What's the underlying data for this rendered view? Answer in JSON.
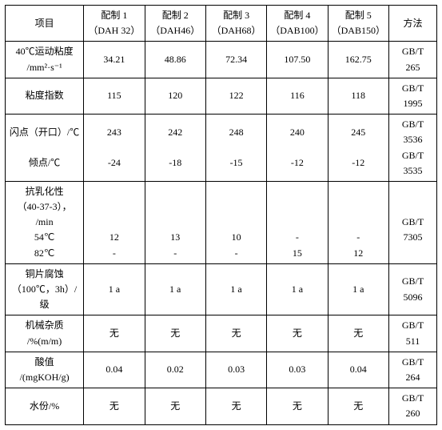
{
  "header": {
    "item": "项目",
    "c1a": "配制 1",
    "c1b": "（DAH 32）",
    "c2a": "配制 2",
    "c2b": "（DAH46）",
    "c3a": "配制 3",
    "c3b": "（DAH68）",
    "c4a": "配制 4",
    "c4b": "（DAB100）",
    "c5a": "配制 5",
    "c5b": "（DAB150）",
    "method": "方法"
  },
  "rows": {
    "visc": {
      "label1": "40℃运动粘度",
      "label2": "/mm²·s⁻¹",
      "v1": "34.21",
      "v2": "48.86",
      "v3": "72.34",
      "v4": "107.50",
      "v5": "162.75",
      "m1": "GB/T",
      "m2": "265"
    },
    "vidx": {
      "label": "粘度指数",
      "v1": "115",
      "v2": "120",
      "v3": "122",
      "v4": "116",
      "v5": "118",
      "m1": "GB/T",
      "m2": "1995"
    },
    "flash": {
      "label1": "闪点（开口）/℃",
      "label2": "倾点/℃",
      "a1": "243",
      "a2": "242",
      "a3": "248",
      "a4": "240",
      "a5": "245",
      "b1": "-24",
      "b2": "-18",
      "b3": "-15",
      "b4": "-12",
      "b5": "-12",
      "m1": "GB/T",
      "m2": "3536",
      "m3": "GB/T",
      "m4": "3535"
    },
    "emul": {
      "label1": "抗乳化性",
      "label2": "（40-37-3），",
      "label3": "/min",
      "label4": "54℃",
      "label5": "82℃",
      "a1": "12",
      "a2": "13",
      "a3": "10",
      "a4": "-",
      "a5": "-",
      "b1": "-",
      "b2": "-",
      "b3": "-",
      "b4": "15",
      "b5": "12",
      "m1": "GB/T",
      "m2": "7305"
    },
    "copper": {
      "label1": "铜片腐蚀",
      "label2": "（100℃，3h）/",
      "label3": "级",
      "v1": "1 a",
      "v2": "1 a",
      "v3": "1 a",
      "v4": "1 a",
      "v5": "1 a",
      "m1": "GB/T",
      "m2": "5096"
    },
    "mech": {
      "label1": "机械杂质",
      "label2": "/%(m/m)",
      "v1": "无",
      "v2": "无",
      "v3": "无",
      "v4": "无",
      "v5": "无",
      "m1": "GB/T",
      "m2": "511"
    },
    "acid": {
      "label1": "酸值",
      "label2": "/(mgKOH/g)",
      "v1": "0.04",
      "v2": "0.02",
      "v3": "0.03",
      "v4": "0.03",
      "v5": "0.04",
      "m1": "GB/T",
      "m2": "264"
    },
    "water": {
      "label": "水份/%",
      "v1": "无",
      "v2": "无",
      "v3": "无",
      "v4": "无",
      "v5": "无",
      "m1": "GB/T",
      "m2": "260"
    }
  }
}
